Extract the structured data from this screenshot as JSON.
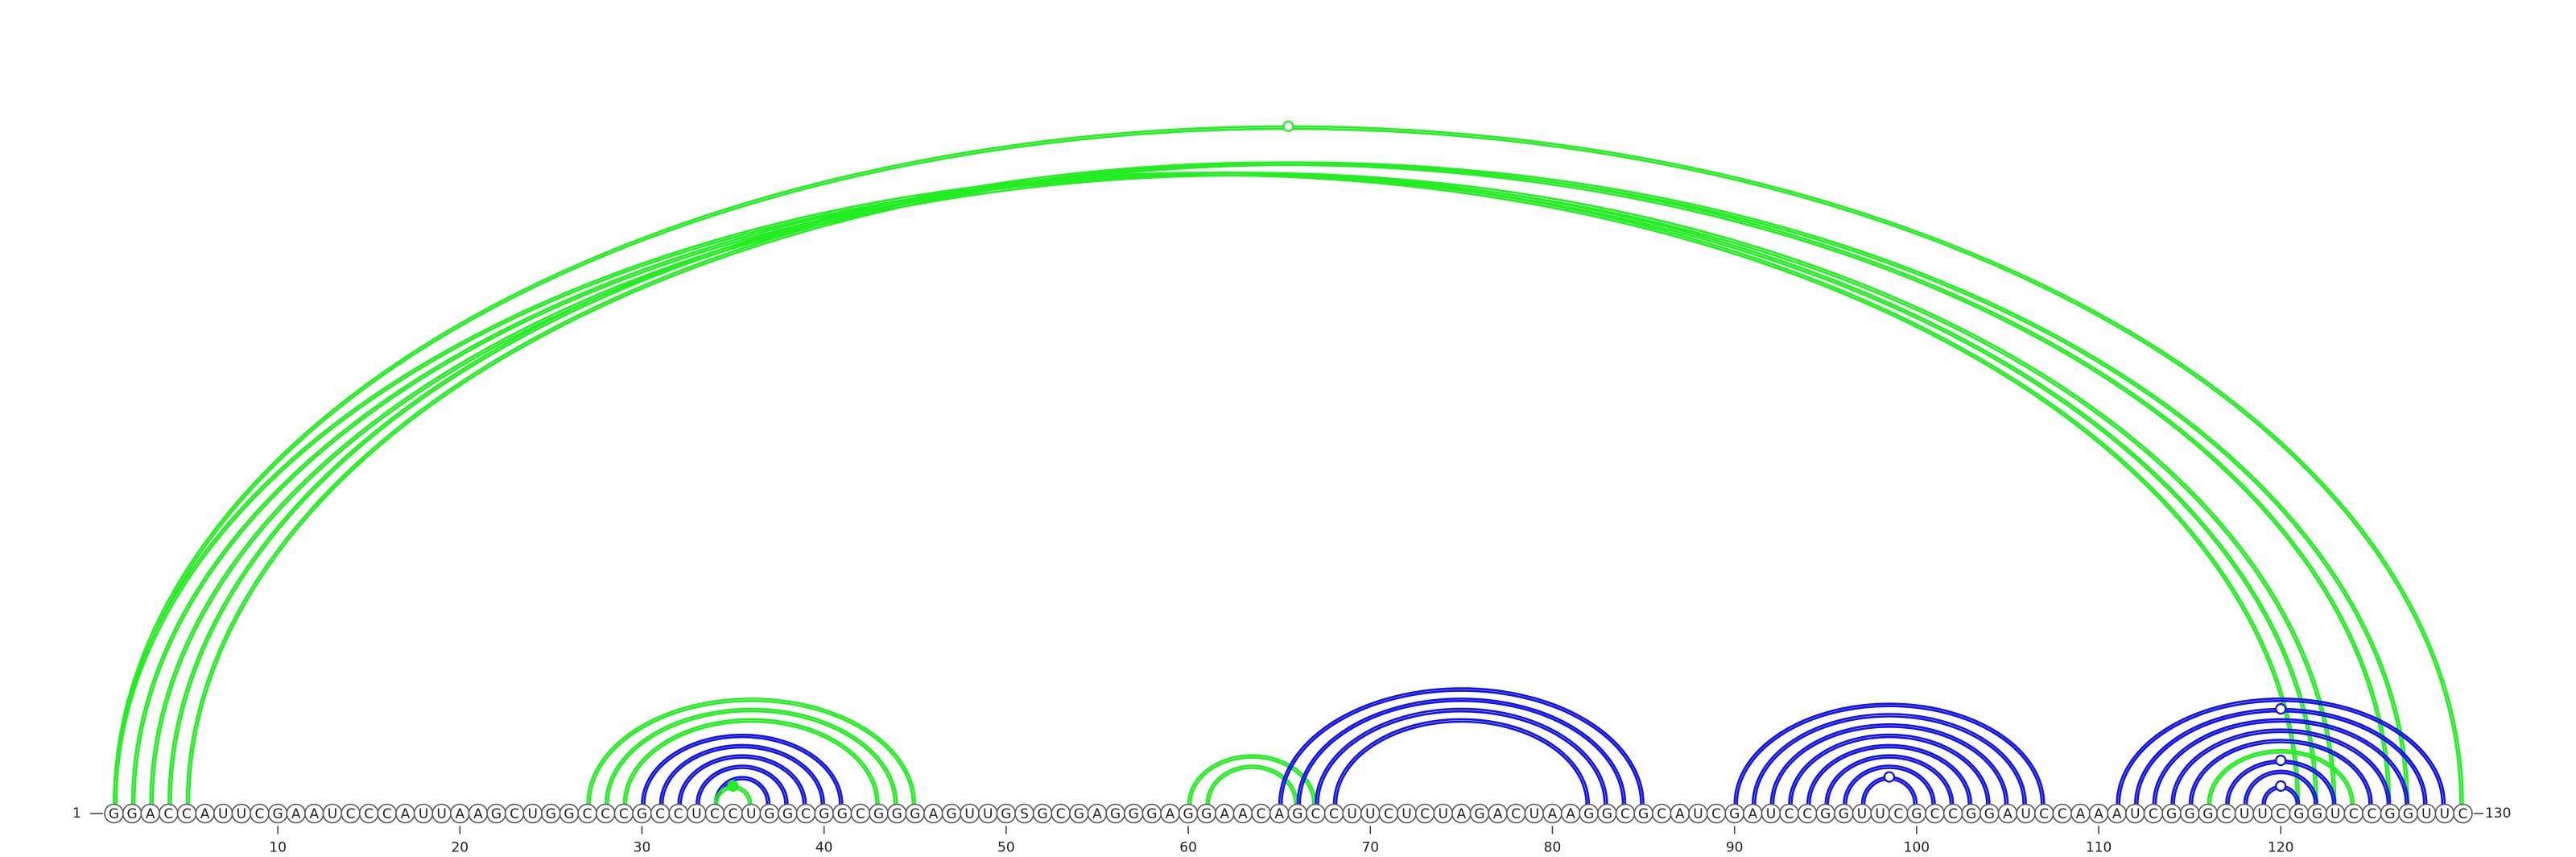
{
  "diagram": {
    "sequence": "GGACCAUUCGAAUCCCAUUAAGCUGGCCCGCCUCCUGGCGGCGGGAGUUGSGCGAGGGAGGAACAGCCUUCUCUAGACUAAGGCGCAUCGAUCCGGUUCGCCGGAUCCAAAUCGGGCUUCGGUCCGGUUC",
    "start_label": "1",
    "end_label": "130",
    "tick_positions": [
      10,
      20,
      30,
      40,
      50,
      60,
      70,
      80,
      90,
      100,
      110,
      120
    ],
    "colors": {
      "green": "#22ee22",
      "blue": "#1111ee"
    },
    "arcs": [
      {
        "i": 1,
        "j": 121,
        "color": "green"
      },
      {
        "i": 2,
        "j": 122,
        "color": "green"
      },
      {
        "i": 3,
        "j": 123,
        "color": "green"
      },
      {
        "i": 4,
        "j": 126,
        "color": "green"
      },
      {
        "i": 5,
        "j": 127,
        "color": "green"
      },
      {
        "i": 27,
        "j": 45,
        "color": "green"
      },
      {
        "i": 28,
        "j": 44,
        "color": "green"
      },
      {
        "i": 29,
        "j": 43,
        "color": "green"
      },
      {
        "i": 30,
        "j": 41,
        "color": "blue"
      },
      {
        "i": 31,
        "j": 40,
        "color": "blue"
      },
      {
        "i": 32,
        "j": 39,
        "color": "blue"
      },
      {
        "i": 33,
        "j": 38,
        "color": "blue"
      },
      {
        "i": 34,
        "j": 37,
        "color": "blue"
      },
      {
        "i": 34,
        "j": 36,
        "color": "green",
        "marker": "filled"
      },
      {
        "i": 60,
        "j": 67,
        "color": "green"
      },
      {
        "i": 61,
        "j": 66,
        "color": "green"
      },
      {
        "i": 65,
        "j": 85,
        "color": "blue"
      },
      {
        "i": 66,
        "j": 84,
        "color": "blue"
      },
      {
        "i": 67,
        "j": 83,
        "color": "blue"
      },
      {
        "i": 68,
        "j": 82,
        "color": "blue"
      },
      {
        "i": 90,
        "j": 107,
        "color": "blue"
      },
      {
        "i": 91,
        "j": 106,
        "color": "blue"
      },
      {
        "i": 92,
        "j": 105,
        "color": "blue"
      },
      {
        "i": 93,
        "j": 104,
        "color": "blue"
      },
      {
        "i": 94,
        "j": 103,
        "color": "blue"
      },
      {
        "i": 95,
        "j": 102,
        "color": "blue"
      },
      {
        "i": 96,
        "j": 101,
        "color": "blue"
      },
      {
        "i": 97,
        "j": 100,
        "color": "blue",
        "marker": "open"
      },
      {
        "i": 111,
        "j": 129,
        "color": "blue"
      },
      {
        "i": 112,
        "j": 128,
        "color": "blue",
        "marker": "open"
      },
      {
        "i": 113,
        "j": 127,
        "color": "blue"
      },
      {
        "i": 114,
        "j": 126,
        "color": "blue"
      },
      {
        "i": 115,
        "j": 125,
        "color": "blue"
      },
      {
        "i": 116,
        "j": 124,
        "color": "green"
      },
      {
        "i": 117,
        "j": 123,
        "color": "blue",
        "marker": "open"
      },
      {
        "i": 118,
        "j": 122,
        "color": "blue"
      },
      {
        "i": 119,
        "j": 121,
        "color": "blue",
        "marker": "open"
      },
      {
        "i": 1,
        "j": 130,
        "color": "green",
        "marker": "open"
      }
    ]
  }
}
